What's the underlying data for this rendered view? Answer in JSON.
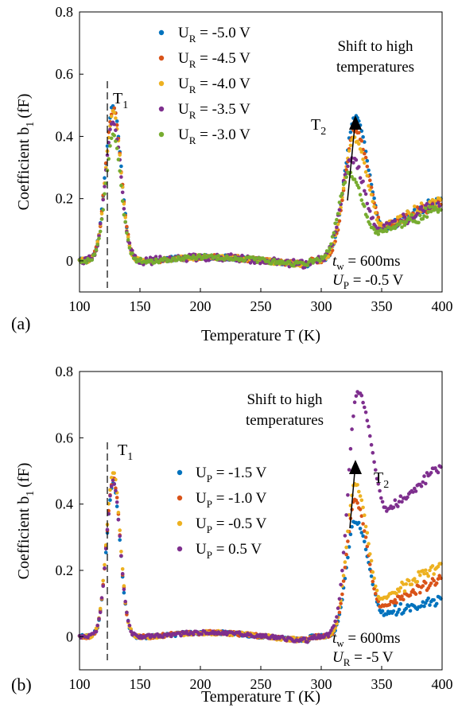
{
  "chart_data": [
    {
      "panel_label": "(a)",
      "type": "scatter",
      "xlabel": "Temperature T (K)",
      "ylabel": "Coefficient b",
      "ylabel_sub": "1",
      "ylabel_unit": "(fF)",
      "xlim": [
        100,
        400
      ],
      "ylim": [
        -0.1,
        0.8
      ],
      "xticks": [
        100,
        150,
        200,
        250,
        300,
        350,
        400
      ],
      "yticks": [
        0,
        0.2,
        0.4,
        0.6,
        0.8
      ],
      "legend_position": "top-left",
      "legend": [
        {
          "sym": "U",
          "sub": "R",
          "val": " = -5.0 V",
          "color": "#0072BD"
        },
        {
          "sym": "U",
          "sub": "R",
          "val": " = -4.5 V",
          "color": "#D95319"
        },
        {
          "sym": "U",
          "sub": "R",
          "val": " = -4.0 V",
          "color": "#EDB120"
        },
        {
          "sym": "U",
          "sub": "R",
          "val": " = -3.5 V",
          "color": "#7E2F8E"
        },
        {
          "sym": "U",
          "sub": "R",
          "val": " = -3.0 V",
          "color": "#77AC30"
        }
      ],
      "series": [
        {
          "p1": [
            128,
            0.5,
            9
          ],
          "p2": [
            328,
            0.46,
            12
          ],
          "valley": [
            352,
            0.1
          ],
          "tail": [
            400,
            0.2
          ],
          "noise": 0.008
        },
        {
          "p1": [
            128,
            0.49,
            9
          ],
          "p2": [
            328,
            0.42,
            12
          ],
          "valley": [
            352,
            0.105
          ],
          "tail": [
            400,
            0.19
          ],
          "noise": 0.008
        },
        {
          "p1": [
            128,
            0.48,
            9
          ],
          "p2": [
            327,
            0.39,
            12
          ],
          "valley": [
            351,
            0.11
          ],
          "tail": [
            400,
            0.2
          ],
          "noise": 0.008
        },
        {
          "p1": [
            128,
            0.45,
            9
          ],
          "p2": [
            325,
            0.33,
            12
          ],
          "valley": [
            348,
            0.1
          ],
          "tail": [
            400,
            0.18
          ],
          "noise": 0.012
        },
        {
          "p1": [
            128,
            0.4,
            9
          ],
          "p2": [
            323,
            0.28,
            12
          ],
          "valley": [
            346,
            0.09
          ],
          "tail": [
            400,
            0.17
          ],
          "noise": 0.008
        }
      ],
      "labels": {
        "t1_main": "T",
        "t1_sub": "1",
        "t2_main": "T",
        "t2_sub": "2",
        "shift_line1": "Shift to high",
        "shift_line2": "temperatures",
        "tw_sym": "t",
        "tw_sub": "w",
        "tw_val": " = 600ms",
        "u_sym": "U",
        "u_sub": "P",
        "u_val": " = -0.5 V"
      }
    },
    {
      "panel_label": "(b)",
      "type": "scatter",
      "xlabel": "Temperature T (K)",
      "ylabel": "Coefficient b",
      "ylabel_sub": "1",
      "ylabel_unit": "(fF)",
      "xlim": [
        100,
        400
      ],
      "ylim": [
        -0.1,
        0.8
      ],
      "xticks": [
        100,
        150,
        200,
        250,
        300,
        350,
        400
      ],
      "yticks": [
        0,
        0.2,
        0.4,
        0.6,
        0.8
      ],
      "legend_position": "center",
      "legend": [
        {
          "sym": "U",
          "sub": "P",
          "val": " = -1.5 V",
          "color": "#0072BD"
        },
        {
          "sym": "U",
          "sub": "P",
          "val": " = -1.0 V",
          "color": "#D95319"
        },
        {
          "sym": "U",
          "sub": "P",
          "val": " = -0.5 V",
          "color": "#EDB120"
        },
        {
          "sym": "U",
          "sub": "P",
          "val": " = 0.5 V",
          "color": "#7E2F8E"
        }
      ],
      "series": [
        {
          "p1": [
            128,
            0.46,
            8
          ],
          "p2": [
            328,
            0.35,
            10
          ],
          "valley": [
            352,
            0.07
          ],
          "tail": [
            400,
            0.11
          ],
          "noise": 0.006
        },
        {
          "p1": [
            128,
            0.48,
            8
          ],
          "p2": [
            328,
            0.41,
            10
          ],
          "valley": [
            350,
            0.09
          ],
          "tail": [
            400,
            0.18
          ],
          "noise": 0.006
        },
        {
          "p1": [
            128,
            0.5,
            8
          ],
          "p2": [
            328,
            0.46,
            10
          ],
          "valley": [
            350,
            0.11
          ],
          "tail": [
            400,
            0.22
          ],
          "noise": 0.006
        },
        {
          "p1": [
            128,
            0.47,
            8
          ],
          "p2": [
            330,
            0.74,
            11
          ],
          "valley": [
            355,
            0.38
          ],
          "tail": [
            400,
            0.52
          ],
          "noise": 0.006
        }
      ],
      "labels": {
        "t1_main": "T",
        "t1_sub": "1",
        "t2_main": "T",
        "t2_sub": "2",
        "shift_line1": "Shift to high",
        "shift_line2": "temperatures",
        "tw_sym": "t",
        "tw_sub": "w",
        "tw_val": " = 600ms",
        "u_sym": "U",
        "u_sub": "R",
        "u_val": " = -5 V"
      }
    }
  ]
}
